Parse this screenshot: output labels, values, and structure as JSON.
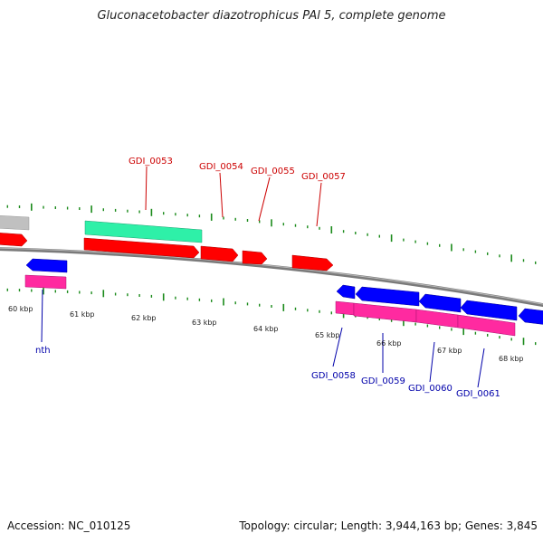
{
  "title": "Gluconacetobacter diazotrophicus PAl 5, complete genome",
  "footer": {
    "accession": "Accession: NC_010125",
    "summary": "Topology: circular; Length: 3,944,163 bp; Genes: 3,845"
  },
  "colors": {
    "forward_gene": "#ff0000",
    "reverse_gene": "#0000ff",
    "rna": "#ff2aa0",
    "rrna": "#2ef0a8",
    "other": "#c0c0c0",
    "label_forward": "#cc0000",
    "label_reverse": "#0000aa",
    "tick": "#1a8a1a",
    "backbone": "#7a7a7a"
  },
  "scale_labels": [
    "60 kbp",
    "61 kbp",
    "62 kbp",
    "63 kbp",
    "64 kbp",
    "65 kbp",
    "66 kbp",
    "67 kbp",
    "68 kbp"
  ],
  "forward_labels": [
    "GDI_0053",
    "GDI_0054",
    "GDI_0055",
    "GDI_0057"
  ],
  "reverse_labels": [
    "nth",
    "GDI_0058",
    "GDI_0059",
    "GDI_0060",
    "GDI_0061"
  ]
}
